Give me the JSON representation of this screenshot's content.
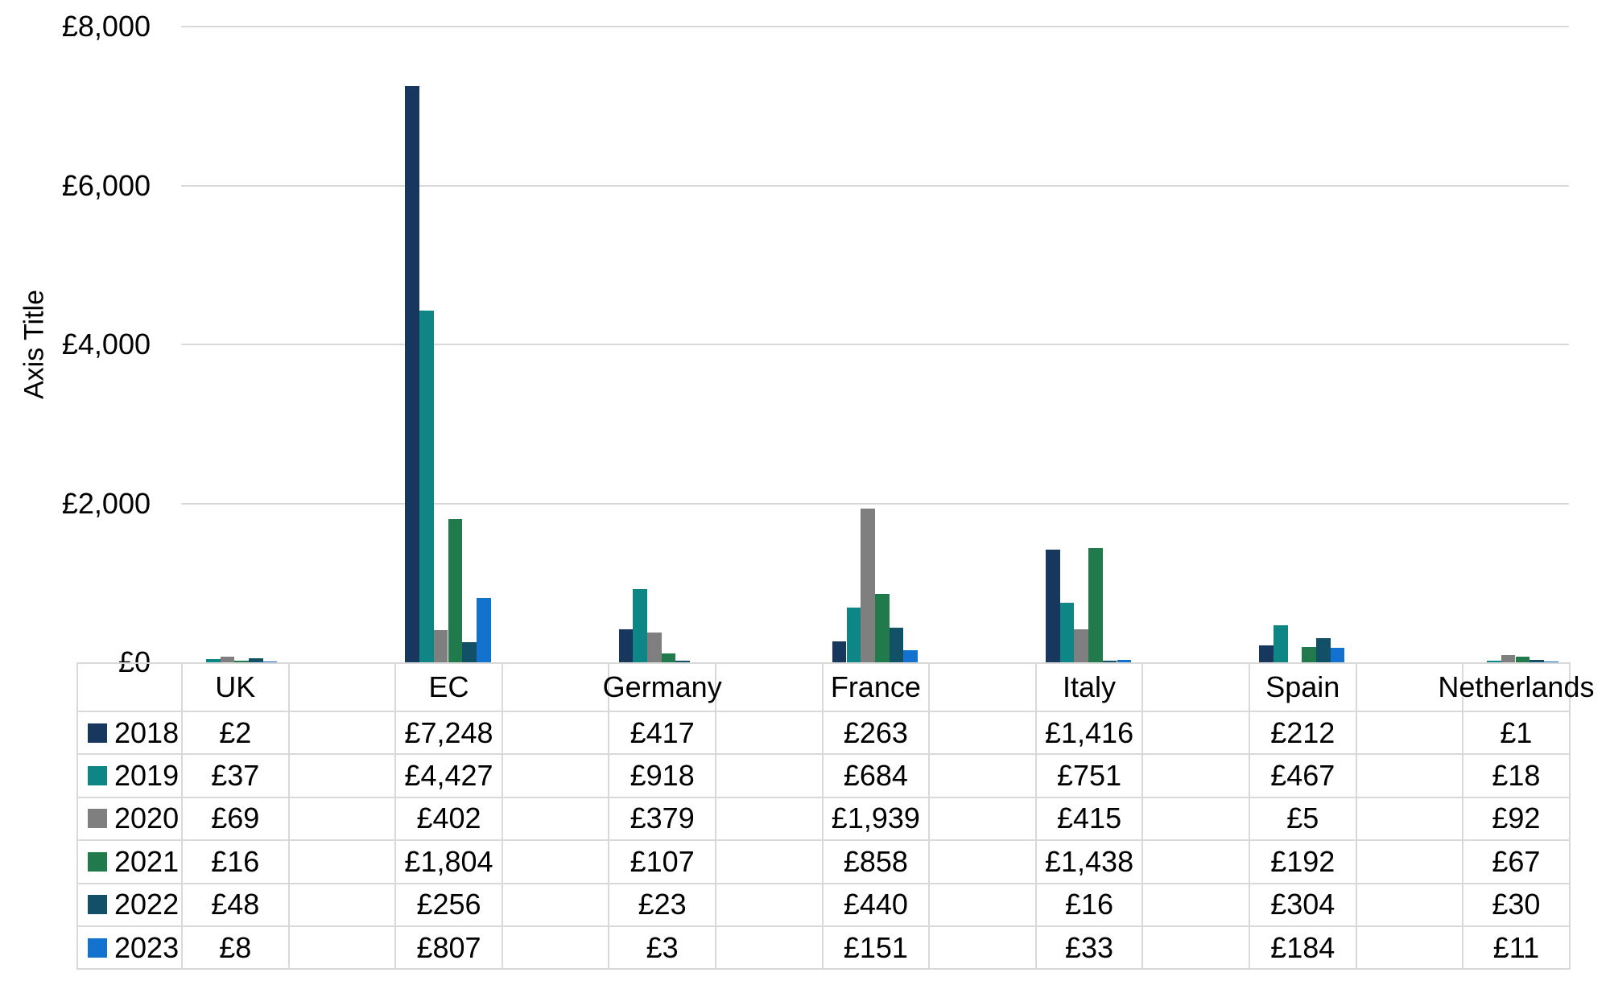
{
  "chart_data": {
    "type": "bar",
    "title": "",
    "xlabel": "",
    "ylabel": "Axis Title",
    "ylim": [
      0,
      8000
    ],
    "grid": true,
    "legend_position": "table-left",
    "y_ticks": [
      {
        "value": 0,
        "label": "£0"
      },
      {
        "value": 2000,
        "label": "£2,000"
      },
      {
        "value": 4000,
        "label": "£4,000"
      },
      {
        "value": 6000,
        "label": "£6,000"
      },
      {
        "value": 8000,
        "label": "£8,000"
      }
    ],
    "categories": [
      "UK",
      "EC",
      "Germany",
      "France",
      "Italy",
      "Spain",
      "Netherlands"
    ],
    "series": [
      {
        "name": "2018",
        "color": "#17375E",
        "values": [
          2,
          7248,
          417,
          263,
          1416,
          212,
          1
        ],
        "labels": [
          "£2",
          "£7,248",
          "£417",
          "£263",
          "£1,416",
          "£212",
          "£1"
        ]
      },
      {
        "name": "2019",
        "color": "#0E8686",
        "values": [
          37,
          4427,
          918,
          684,
          751,
          467,
          18
        ],
        "labels": [
          "£37",
          "£4,427",
          "£918",
          "£684",
          "£751",
          "£467",
          "£18"
        ]
      },
      {
        "name": "2020",
        "color": "#7F7F7F",
        "values": [
          69,
          402,
          379,
          1939,
          415,
          5,
          92
        ],
        "labels": [
          "£69",
          "£402",
          "£379",
          "£1,939",
          "£415",
          "£5",
          "£92"
        ]
      },
      {
        "name": "2021",
        "color": "#217A4B",
        "values": [
          16,
          1804,
          107,
          858,
          1438,
          192,
          67
        ],
        "labels": [
          "£16",
          "£1,804",
          "£107",
          "£858",
          "£1,438",
          "£192",
          "£67"
        ]
      },
      {
        "name": "2022",
        "color": "#115066",
        "values": [
          48,
          256,
          23,
          440,
          16,
          304,
          30
        ],
        "labels": [
          "£48",
          "£256",
          "£23",
          "£440",
          "£16",
          "£304",
          "£30"
        ]
      },
      {
        "name": "2023",
        "color": "#1272CE",
        "values": [
          8,
          807,
          3,
          151,
          33,
          184,
          11
        ],
        "labels": [
          "£8",
          "£807",
          "£3",
          "£151",
          "£33",
          "£184",
          "£11"
        ]
      }
    ],
    "grid_color": "#D9D9D9",
    "table_border_color": "#D9D9D9"
  }
}
